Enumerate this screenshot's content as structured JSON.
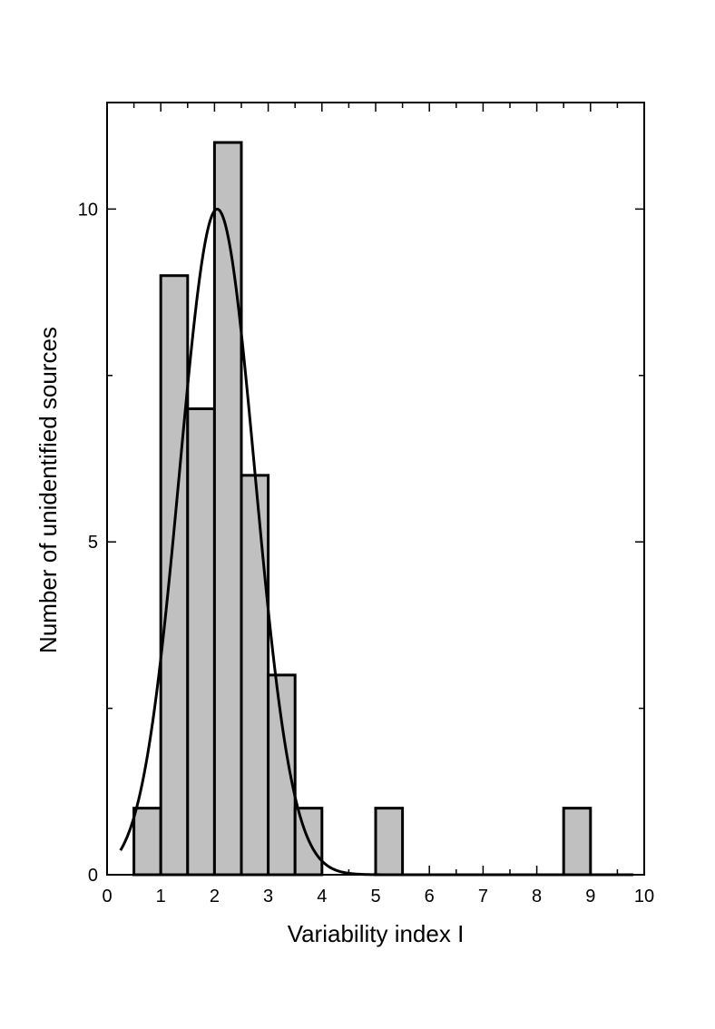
{
  "chart_data": {
    "type": "bar",
    "xlabel": "Variability index I",
    "ylabel": "Number of unidentified sources",
    "xlim": [
      0,
      10
    ],
    "ylim": [
      0,
      11.6
    ],
    "x_ticks": [
      "0",
      "1",
      "2",
      "3",
      "4",
      "5",
      "6",
      "7",
      "8",
      "9",
      "10"
    ],
    "y_ticks": [
      "0",
      "5",
      "10"
    ],
    "grid": false,
    "bar_color": "#c0c0c0",
    "bins": [
      {
        "x0": 0.5,
        "x1": 1.0,
        "count": 1
      },
      {
        "x0": 1.0,
        "x1": 1.5,
        "count": 9
      },
      {
        "x0": 1.5,
        "x1": 2.0,
        "count": 7
      },
      {
        "x0": 2.0,
        "x1": 2.5,
        "count": 11
      },
      {
        "x0": 2.5,
        "x1": 3.0,
        "count": 6
      },
      {
        "x0": 3.0,
        "x1": 3.5,
        "count": 3
      },
      {
        "x0": 3.5,
        "x1": 4.0,
        "count": 1
      },
      {
        "x0": 5.0,
        "x1": 5.5,
        "count": 1
      },
      {
        "x0": 8.5,
        "x1": 9.0,
        "count": 1
      }
    ],
    "fit_curve": {
      "type": "gaussian",
      "peak": 10.0,
      "center": 2.05,
      "sigma": 0.7,
      "x_range": [
        0.25,
        9.8
      ]
    }
  }
}
